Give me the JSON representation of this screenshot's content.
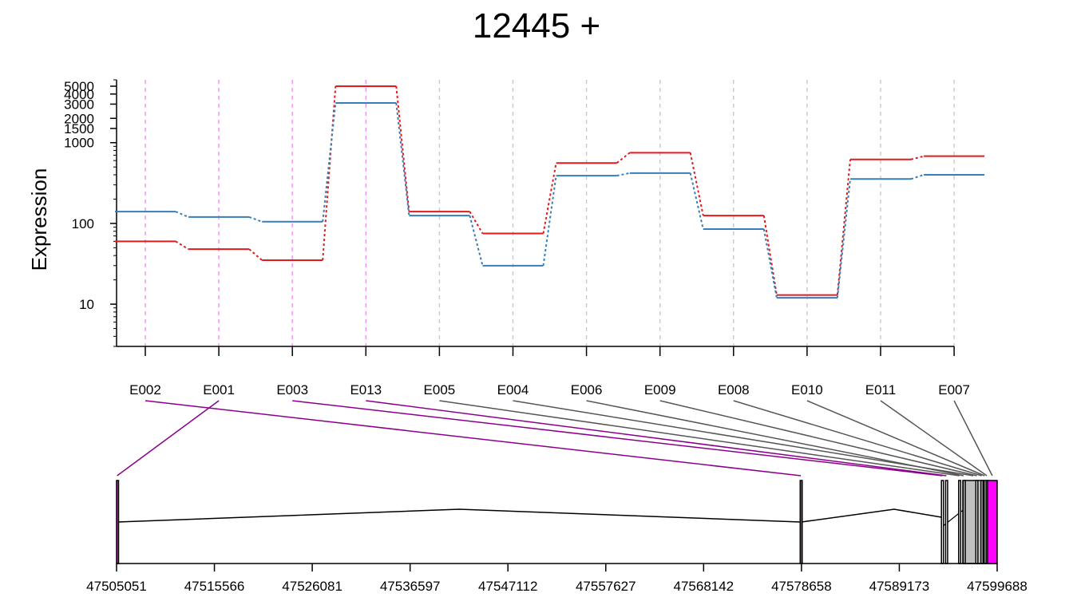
{
  "chart_data": {
    "type": "line",
    "title": "12445 +",
    "ylabel": "Expression",
    "xlabel": "",
    "y_scale": "log",
    "ylim": [
      3,
      6000
    ],
    "y_ticks": [
      10,
      100,
      1000,
      1500,
      2000,
      3000,
      4000,
      5000
    ],
    "categories": [
      "E002",
      "E001",
      "E003",
      "E013",
      "E005",
      "E004",
      "E006",
      "E009",
      "E008",
      "E010",
      "E011",
      "E007"
    ],
    "series": [
      {
        "color": "#e41a1c",
        "values": [
          60,
          48,
          35,
          5000,
          140,
          75,
          560,
          750,
          125,
          13,
          620,
          680
        ]
      },
      {
        "color": "#377eb8",
        "values": [
          140,
          120,
          105,
          3100,
          125,
          30,
          390,
          420,
          85,
          12,
          355,
          400
        ]
      }
    ],
    "highlighted_exons": [
      "E002",
      "E001",
      "E003",
      "E013"
    ],
    "highlight_color": "#8b008b",
    "normal_link_color": "#555555",
    "genomic_axis_ticks": [
      "47505051",
      "47515566",
      "47526081",
      "47536597",
      "47547112",
      "47557627",
      "47568142",
      "47578658",
      "47589173",
      "47599688"
    ],
    "genomic_range": [
      47505051,
      47599688
    ],
    "exons": [
      {
        "id": "E001",
        "start": 47505051,
        "end": 47505170,
        "fill": "#ff00ff"
      },
      {
        "id": "E002",
        "start": 47578520,
        "end": 47578658,
        "fill": "#ff00ff"
      },
      {
        "id": "E003",
        "start": 47593700,
        "end": 47593900,
        "fill": "#ffffff"
      },
      {
        "id": "E013",
        "start": 47594150,
        "end": 47594300,
        "fill": "#ffffff"
      },
      {
        "id": "E005",
        "start": 47595550,
        "end": 47595700,
        "fill": "#ffffff"
      },
      {
        "id": "E004",
        "start": 47596000,
        "end": 47598250,
        "fill": "#c0c0c0"
      },
      {
        "id": "E006",
        "start": 47596050,
        "end": 47596100,
        "fill": "#ffffff"
      },
      {
        "id": "E009",
        "start": 47597400,
        "end": 47597600,
        "fill": "#ffffff"
      },
      {
        "id": "E008",
        "start": 47597950,
        "end": 47598100,
        "fill": "#ffffff"
      },
      {
        "id": "E010",
        "start": 47598300,
        "end": 47598350,
        "fill": "#ffffff"
      },
      {
        "id": "E011",
        "start": 47598500,
        "end": 47598650,
        "fill": "#ffffff"
      },
      {
        "id": "E007",
        "start": 47598650,
        "end": 47599688,
        "fill": "#ff00ff"
      }
    ]
  }
}
